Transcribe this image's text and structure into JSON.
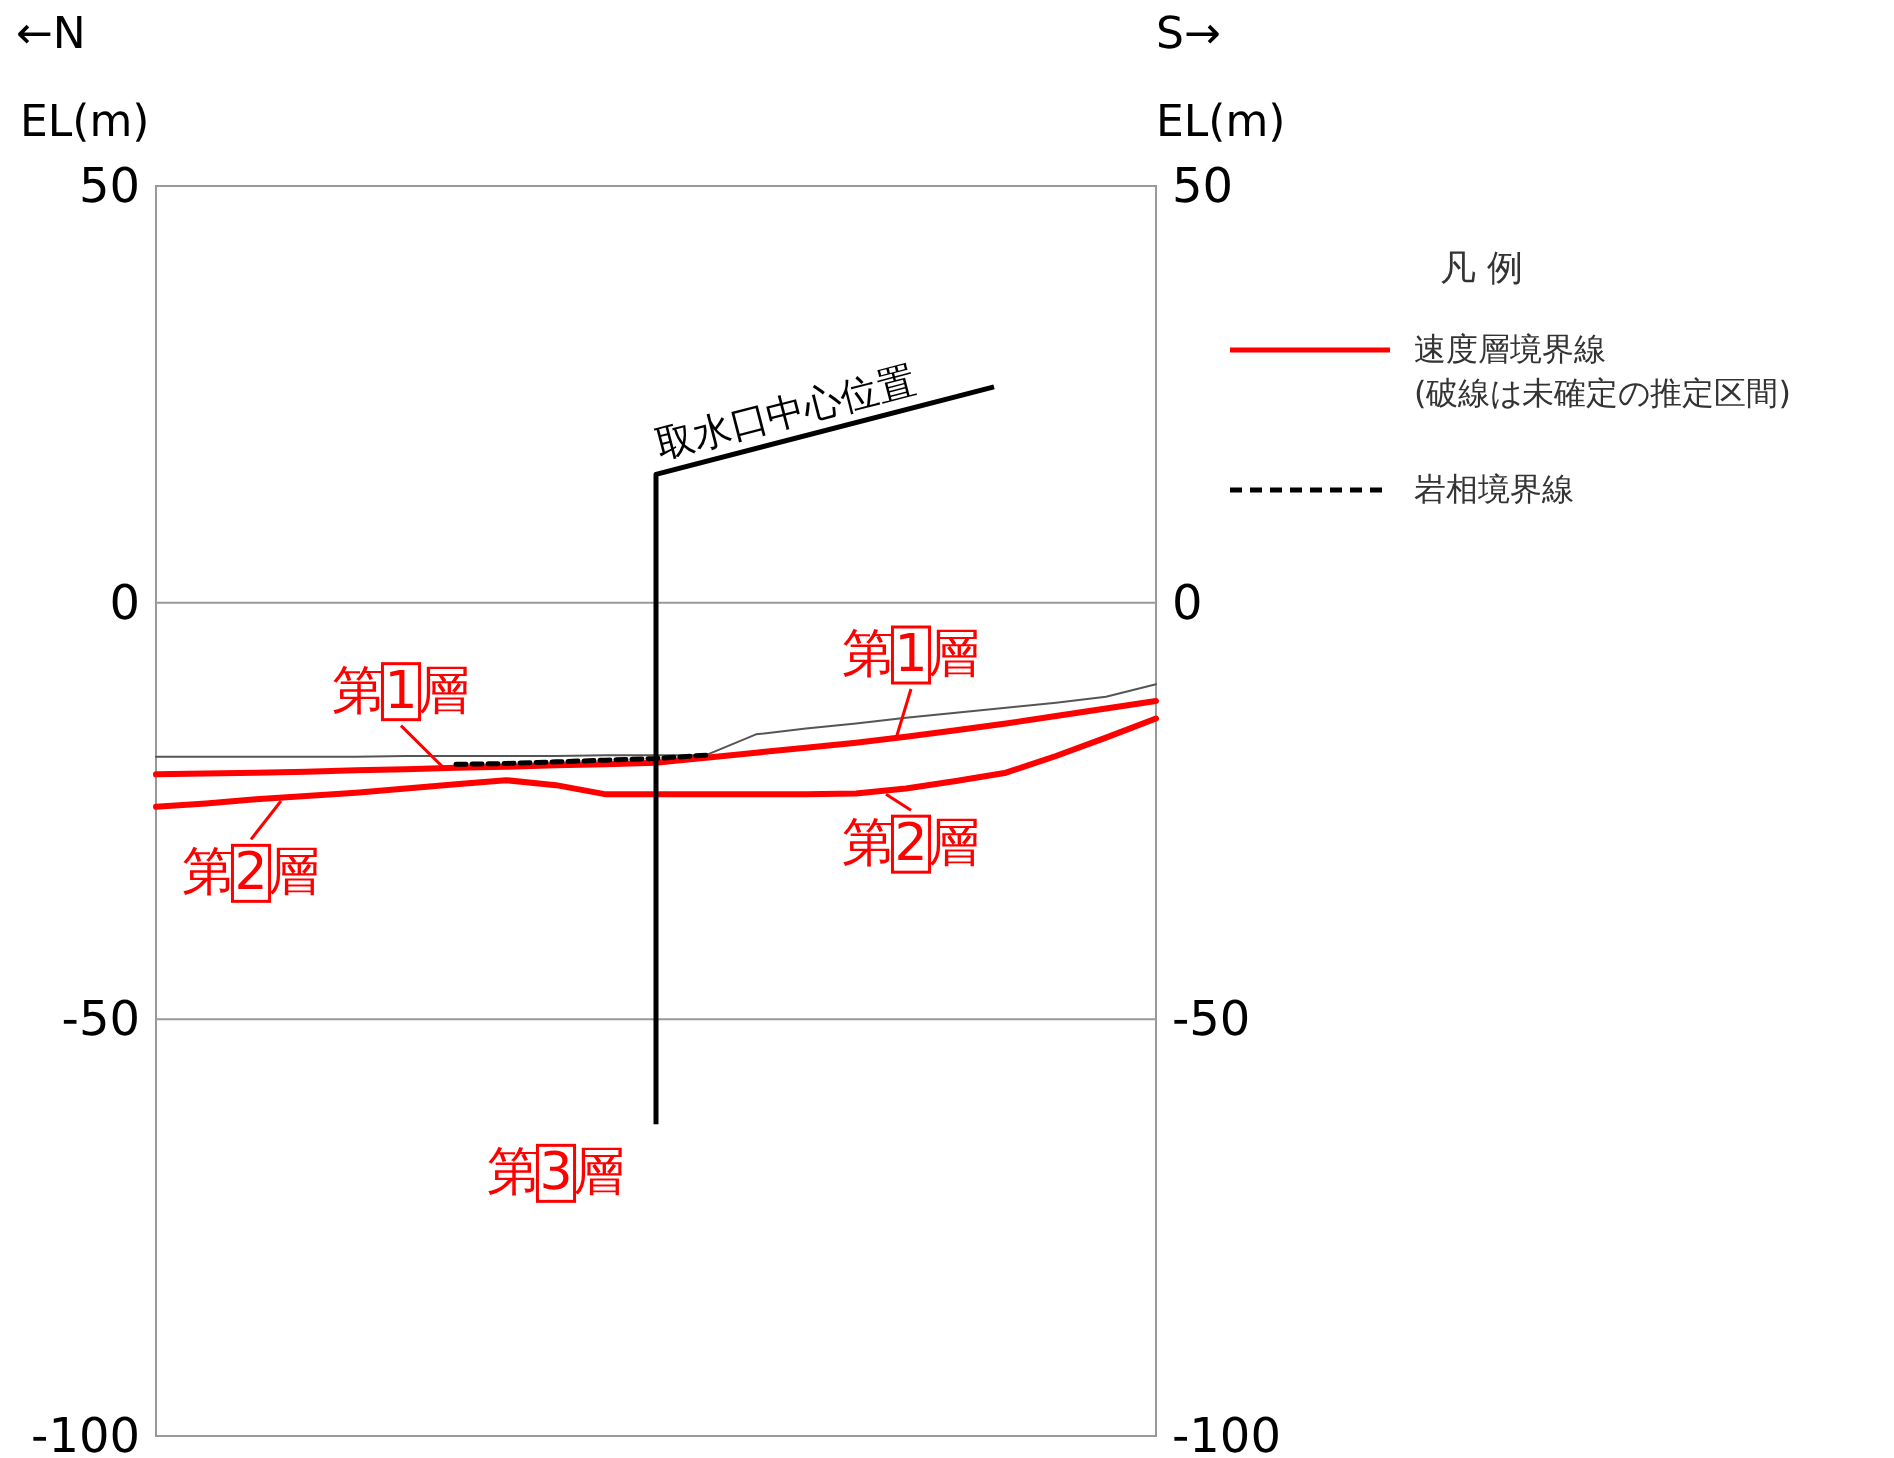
{
  "chart_data": {
    "type": "line",
    "ylabel": "EL(m)",
    "y2label": "EL(m)",
    "legend_title": "凡 例",
    "categories": [
      null,
      null,
      null,
      null,
      null,
      null,
      null,
      null,
      null,
      null,
      null,
      null,
      null,
      null,
      null,
      null,
      null,
      null,
      null,
      null,
      null
    ],
    "ylim": [
      -100,
      50
    ],
    "yticks": [
      -100,
      -50,
      0,
      50
    ],
    "y2lim": [
      -100,
      50
    ],
    "y2ticks": [
      -100,
      -50,
      0,
      50
    ],
    "tick_labels": "y",
    "grid": "y",
    "legend": "right",
    "annotations": [
      "←N",
      "S→",
      "取水口中心位置",
      "第1層",
      "第1層",
      "第2層",
      "第2層",
      "第3層"
    ],
    "series": [
      {
        "color": "#555555",
        "line_style": "solid",
        "values": [
          -18.5,
          -18.5,
          -18.5,
          -18.5,
          -18.5,
          -18.4,
          -18.4,
          -18.4,
          -18.4,
          -18.3,
          -18.3,
          -18.3,
          -15.8,
          -15.1,
          -14.5,
          -13.8,
          -13.2,
          -12.6,
          -12,
          -11.3,
          -9.8
        ]
      },
      {
        "name": "速度層境界線\n(破線は未確定の推定区間)",
        "color": "#ff0000",
        "line_style": "solid",
        "values": [
          -20.6,
          -20.5,
          -20.4,
          -20.3,
          -20.1,
          -20,
          -19.8,
          -19.7,
          -19.5,
          -19.4,
          -19.2,
          -18.6,
          -18,
          -17.4,
          -16.8,
          -16.1,
          -15.3,
          -14.5,
          -13.6,
          -12.7,
          -11.8
        ]
      },
      {
        "color": "#ff0000",
        "line_style": "solid",
        "values": [
          -24.5,
          -24.1,
          -23.6,
          -23.2,
          -22.8,
          -22.3,
          -21.8,
          -21.3,
          -21.9,
          -23,
          -23,
          -23,
          -23,
          -23,
          -22.9,
          -22.3,
          -21.4,
          -20.4,
          -18.4,
          -16.2,
          -13.9
        ]
      },
      {
        "name": "岩相境界線",
        "color": "#000000",
        "line_style": "dashed",
        "values": [
          null,
          null,
          null,
          null,
          null,
          null,
          -19.4,
          -19.3,
          -19.1,
          -18.9,
          -18.7,
          -18.3,
          null,
          null,
          null,
          null,
          null,
          null,
          null,
          null,
          null
        ]
      }
    ]
  }
}
